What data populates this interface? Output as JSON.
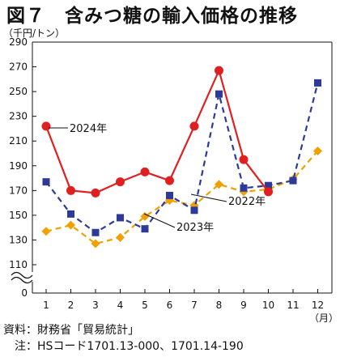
{
  "title": "図７　含みつ糖の輸入価格の推移",
  "unit_label": "（千円/トン）",
  "x_unit_label": "（月）",
  "notes": {
    "source": "資料：財務省「貿易統計」",
    "note": "　注：HSコード1701.13-000、1701.14-190"
  },
  "colors": {
    "2024": "#e02020",
    "2022": "#2e3a9a",
    "2023": "#f0a000"
  },
  "chart_data": {
    "type": "line",
    "title": "図７　含みつ糖の輸入価格の推移",
    "ylabel": "（千円/トン）",
    "xlabel": "（月）",
    "x": [
      1,
      2,
      3,
      4,
      5,
      6,
      7,
      8,
      9,
      10,
      11,
      12
    ],
    "x_ticks": [
      "1",
      "2",
      "3",
      "4",
      "5",
      "6",
      "7",
      "8",
      "9",
      "10",
      "11",
      "12"
    ],
    "y_ticks": [
      110,
      130,
      150,
      170,
      190,
      210,
      230,
      250,
      270,
      290
    ],
    "y_break_label": "0",
    "ylim": [
      100,
      290
    ],
    "grid": false,
    "series": [
      {
        "name": "2024年",
        "style": "solid",
        "marker": "circle",
        "color": "#e02020",
        "values": [
          222,
          170,
          168,
          177,
          185,
          178,
          222,
          267,
          195,
          169,
          null,
          null
        ]
      },
      {
        "name": "2022年",
        "style": "dashed",
        "marker": "square",
        "color": "#2e3a9a",
        "values": [
          177,
          151,
          136,
          148,
          139,
          166,
          154,
          248,
          172,
          174,
          178,
          257
        ]
      },
      {
        "name": "2023年",
        "style": "dashed",
        "marker": "diamond",
        "color": "#f0a000",
        "values": [
          137,
          142,
          127,
          132,
          149,
          162,
          158,
          175,
          169,
          171,
          179,
          202
        ]
      }
    ]
  }
}
